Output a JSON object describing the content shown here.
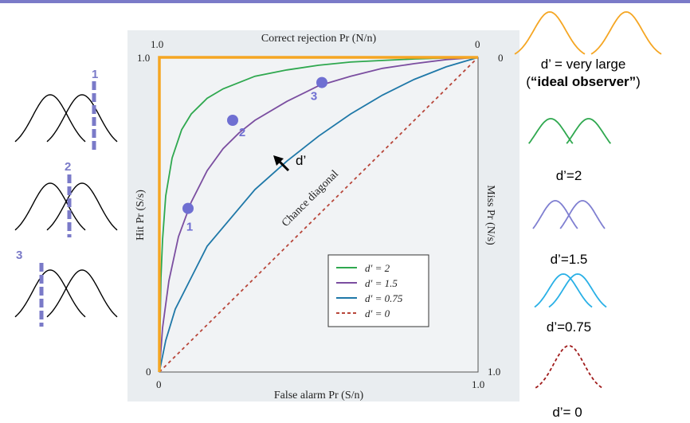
{
  "colors": {
    "accent": "#7a7ac8",
    "ideal": "#f5a623",
    "d2": "#2fa84f",
    "d15": "#7b4ea0",
    "d075": "#1f78a8",
    "d0": "#b8463a",
    "right_d15": "#7f7fd1",
    "right_d075": "#29b0e6",
    "right_d0": "#a01c1c",
    "point": "#6f6fd2",
    "paper": "#e9edf0"
  },
  "chart_data": {
    "type": "line",
    "x_axis": {
      "label": "False alarm Pr (S/n)",
      "range": [
        0,
        1
      ],
      "ticks": [
        "0",
        "1.0"
      ]
    },
    "y_axis": {
      "label": "Hit Pr (S/s)",
      "range": [
        0,
        1
      ],
      "ticks": [
        "0",
        "1.0"
      ]
    },
    "top_axis": {
      "label": "Correct rejection Pr (N/n)",
      "ticks": [
        "1.0",
        "0"
      ]
    },
    "right_axis": {
      "label": "Miss Pr (N/s)",
      "ticks": [
        "0",
        "1.0"
      ]
    },
    "series": [
      {
        "name": "d' = 2",
        "color": "#2fa84f",
        "x": [
          0,
          0.005,
          0.01,
          0.02,
          0.04,
          0.07,
          0.1,
          0.15,
          0.2,
          0.3,
          0.4,
          0.5,
          0.6,
          0.7,
          0.8,
          0.9,
          1.0
        ],
        "y": [
          0,
          0.3,
          0.42,
          0.56,
          0.68,
          0.77,
          0.82,
          0.87,
          0.9,
          0.94,
          0.96,
          0.975,
          0.985,
          0.99,
          0.995,
          0.998,
          1.0
        ]
      },
      {
        "name": "d' = 1.5",
        "color": "#7b4ea0",
        "x": [
          0,
          0.01,
          0.03,
          0.06,
          0.1,
          0.15,
          0.2,
          0.25,
          0.3,
          0.4,
          0.5,
          0.6,
          0.7,
          0.8,
          0.9,
          1.0
        ],
        "y": [
          0,
          0.14,
          0.29,
          0.43,
          0.54,
          0.64,
          0.71,
          0.76,
          0.8,
          0.86,
          0.91,
          0.94,
          0.965,
          0.98,
          0.993,
          1.0
        ]
      },
      {
        "name": "d' = 0.75",
        "color": "#1f78a8",
        "x": [
          0,
          0.02,
          0.05,
          0.1,
          0.15,
          0.2,
          0.3,
          0.4,
          0.5,
          0.6,
          0.7,
          0.8,
          0.9,
          1.0
        ],
        "y": [
          0,
          0.1,
          0.2,
          0.3,
          0.4,
          0.46,
          0.58,
          0.67,
          0.75,
          0.82,
          0.88,
          0.93,
          0.97,
          1.0
        ]
      },
      {
        "name": "d' = 0",
        "color": "#b8463a",
        "dashed": true,
        "x": [
          0,
          1
        ],
        "y": [
          0,
          1
        ]
      }
    ],
    "ideal_observer": {
      "color": "#f5a623",
      "x": [
        0,
        0,
        1
      ],
      "y": [
        0,
        1,
        1
      ]
    },
    "points": [
      {
        "label": "1",
        "x": 0.09,
        "y": 0.52
      },
      {
        "label": "2",
        "x": 0.23,
        "y": 0.8
      },
      {
        "label": "3",
        "x": 0.51,
        "y": 0.92
      }
    ],
    "annotations": [
      "Chance diagonal",
      "d’"
    ],
    "legend": {
      "position": "bottom-right",
      "entries": [
        "d′ = 2",
        "d′ = 1.5",
        "d′ = 0.75",
        "d′ = 0"
      ]
    }
  },
  "left_panels": [
    {
      "label": "1",
      "criterion_position": "right"
    },
    {
      "label": "2",
      "criterion_position": "middle"
    },
    {
      "label": "3",
      "criterion_position": "left"
    }
  ],
  "right_panels": [
    {
      "label_line1": "d’ = very large",
      "label_prefix": "(",
      "label_bold": "“ideal observer”",
      "label_suffix": ")",
      "d": 2.4,
      "color": "#f5a623"
    },
    {
      "label": "d’=2",
      "d": 1.25,
      "color": "#2fa84f"
    },
    {
      "label": "d’=1.5",
      "d": 0.95,
      "color": "#7f7fd1"
    },
    {
      "label": "d’=0.75",
      "d": 0.5,
      "color": "#29b0e6"
    },
    {
      "label": "d’= 0",
      "d": 0,
      "color": "#a01c1c",
      "dashed": true
    }
  ]
}
